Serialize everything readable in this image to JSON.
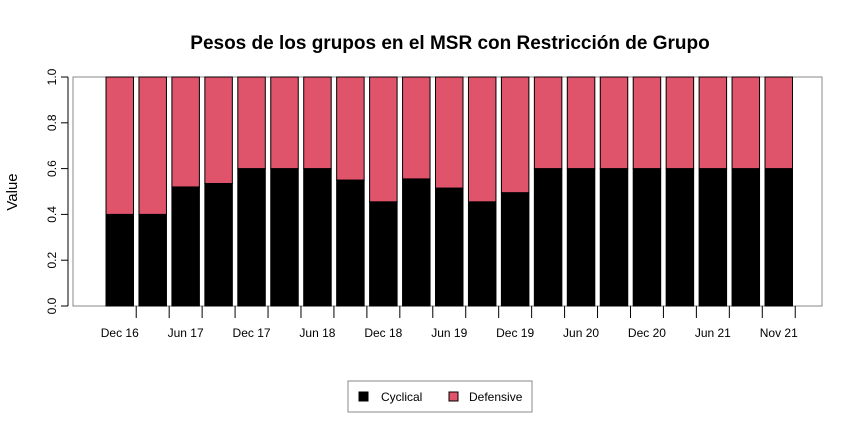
{
  "chart_data": {
    "type": "bar",
    "stacked": true,
    "title": "Pesos de los grupos en el MSR con Restricción de Grupo",
    "xlabel": "",
    "ylabel": "Value",
    "ylim": [
      0,
      1
    ],
    "y_ticks": [
      "0.0",
      "0.2",
      "0.4",
      "0.6",
      "0.8",
      "1.0"
    ],
    "x_tick_labels": [
      "Dec 16",
      "Jun 17",
      "Dec 17",
      "Jun 18",
      "Dec 18",
      "Jun 19",
      "Dec 19",
      "Jun 20",
      "Dec 20",
      "Jun 21",
      "Nov 21"
    ],
    "n_bars": 21,
    "series": [
      {
        "name": "Cyclical",
        "color": "#000000",
        "values": [
          0.4,
          0.4,
          0.52,
          0.535,
          0.6,
          0.6,
          0.6,
          0.55,
          0.455,
          0.555,
          0.515,
          0.455,
          0.495,
          0.6,
          0.6,
          0.6,
          0.6,
          0.6,
          0.6,
          0.6,
          0.6
        ]
      },
      {
        "name": "Defensive",
        "color": "#DF536B",
        "values": [
          0.6,
          0.6,
          0.48,
          0.465,
          0.4,
          0.4,
          0.4,
          0.45,
          0.545,
          0.445,
          0.485,
          0.545,
          0.505,
          0.4,
          0.4,
          0.4,
          0.4,
          0.4,
          0.4,
          0.4,
          0.4
        ]
      }
    ],
    "legend": {
      "position": "bottom-center",
      "entries": [
        "Cyclical",
        "Defensive"
      ]
    },
    "grid": false
  }
}
